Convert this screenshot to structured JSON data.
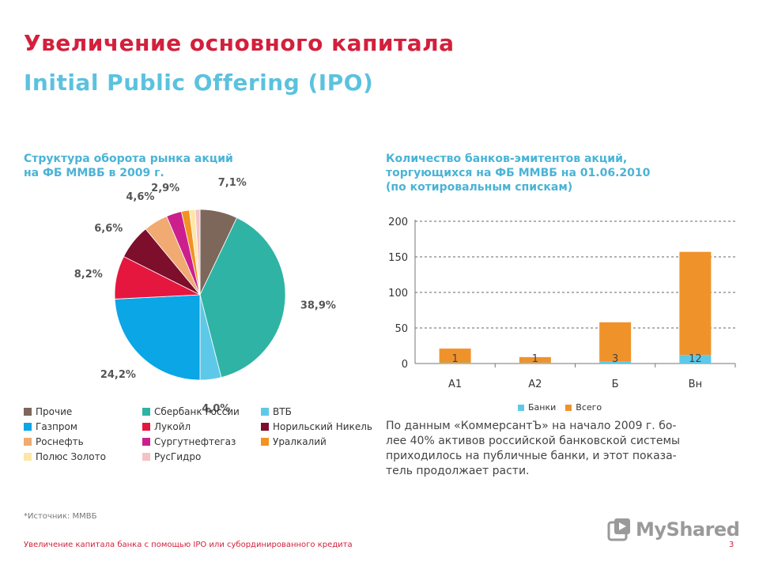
{
  "header": {
    "title": "Увеличение основного капитала",
    "subtitle": "Initial Public Offering (IPO)"
  },
  "colors": {
    "title": "#d3203c",
    "subtitle": "#5bc2de"
  },
  "chart_data": [
    {
      "type": "pie",
      "title": "Структура оборота рынка акций на ФБ ММВБ в 2009 г.",
      "title_lines": [
        "Структура оборота рынка акций",
        "на ФБ ММВБ в 2009 г."
      ],
      "slices": [
        {
          "name": "Прочие",
          "value": 7.1,
          "label": "7,1%",
          "color": "#7d675a"
        },
        {
          "name": "Сбербанк России",
          "value": 38.9,
          "label": "38,9%",
          "color": "#2fb3a4"
        },
        {
          "name": "ВТБ",
          "value": 4.0,
          "label": "4,0%",
          "color": "#5ec8e8"
        },
        {
          "name": "Газпром",
          "value": 24.2,
          "label": "24,2%",
          "color": "#0aa6e6"
        },
        {
          "name": "Лукойл",
          "value": 8.2,
          "label": "8,2%",
          "color": "#e5173f"
        },
        {
          "name": "Норильский Никель",
          "value": 6.6,
          "label": "6,6%",
          "color": "#7d0e2c"
        },
        {
          "name": "Роснефть",
          "value": 4.6,
          "label": "4,6%",
          "color": "#f0aa72"
        },
        {
          "name": "Сургутнефтегаз",
          "value": 2.9,
          "label": "2,9%",
          "color": "#cc1f8e"
        },
        {
          "name": "Уралкалий",
          "value": 1.5,
          "label": "",
          "color": "#f29222"
        },
        {
          "name": "Полюс Золото",
          "value": 1.1,
          "label": "",
          "color": "#fde7a8"
        },
        {
          "name": "РусГидро",
          "value": 0.9,
          "label": "",
          "color": "#f4c3c5"
        }
      ]
    },
    {
      "type": "bar",
      "title": "Количество банков-эмитентов акций, торгующихся на ФБ ММВБ на 01.06.2010 (по котировальным спискам)",
      "title_lines": [
        "Количество банков-эмитентов акций,",
        "торгующихся на ФБ ММВБ на 01.06.2010",
        "(по котировальным спискам)"
      ],
      "categories": [
        "А1",
        "А2",
        "Б",
        "Вн"
      ],
      "series": [
        {
          "name": "Банки",
          "values": [
            1,
            1,
            3,
            12
          ],
          "color": "#5ec8e8"
        },
        {
          "name": "Всего",
          "values": [
            21,
            9,
            58,
            157
          ],
          "color": "#f0922a"
        }
      ],
      "bar_labels": [
        "1",
        "1",
        "3",
        "12"
      ],
      "ylim": [
        0,
        200
      ],
      "yticks": [
        0,
        50,
        100,
        150,
        200
      ],
      "grid": true,
      "legend": "bottom"
    }
  ],
  "note": "По данным «КоммерсантЪ» на начало 2009 г. бо-лее 40% активов российской банковской системы приходилось на публичные банки, и этот показа-тель продолжает расти.",
  "note_lines": [
    "По данным «КоммерсантЪ» на начало 2009 г. бо-",
    "лее 40% активов российской банковской системы",
    "приходилось на публичные банки, и этот показа-",
    "тель продолжает расти."
  ],
  "source": "*Источник: ММВБ",
  "footer": {
    "text": "Увеличение капитала банка с помощью IPO или субординированного кредита",
    "page": "3",
    "logo": "MyShared"
  }
}
